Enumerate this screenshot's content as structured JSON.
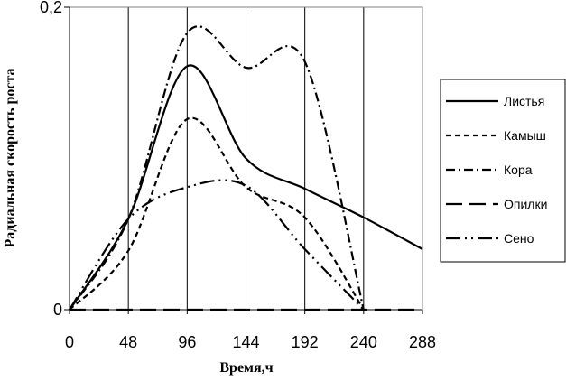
{
  "chart_data": {
    "type": "line",
    "title": "",
    "xlabel": "Время,ч",
    "ylabel": "Радиальная скорость роста",
    "xlim": [
      0,
      288
    ],
    "ylim": [
      0,
      0.2
    ],
    "x_ticks": [
      "0",
      "48",
      "96",
      "144",
      "192",
      "240",
      "288"
    ],
    "y_ticks": [
      "0",
      "0,2"
    ],
    "grid": "vertical",
    "legend_placement": "right",
    "x": [
      0,
      48,
      96,
      144,
      192,
      240,
      288
    ],
    "series": [
      {
        "name": "Листья",
        "style": "solid",
        "values": [
          0,
          0.06,
          0.161,
          0.1,
          0.08,
          0.061,
          0.04
        ]
      },
      {
        "name": "Камыш",
        "style": "dash",
        "values": [
          0,
          0.039,
          0.126,
          0.081,
          0.061,
          0,
          null
        ]
      },
      {
        "name": "Кора",
        "style": "dash-dot",
        "values": [
          0,
          0.06,
          0.183,
          0.16,
          0.164,
          0,
          null
        ]
      },
      {
        "name": "Опилки",
        "style": "long-dash",
        "values": [
          0,
          0,
          0,
          0,
          0,
          0,
          0
        ]
      },
      {
        "name": "Сено",
        "style": "long-dash-dot-dot",
        "values": [
          0,
          0.06,
          0.081,
          0.082,
          0.04,
          0,
          null
        ]
      }
    ]
  }
}
